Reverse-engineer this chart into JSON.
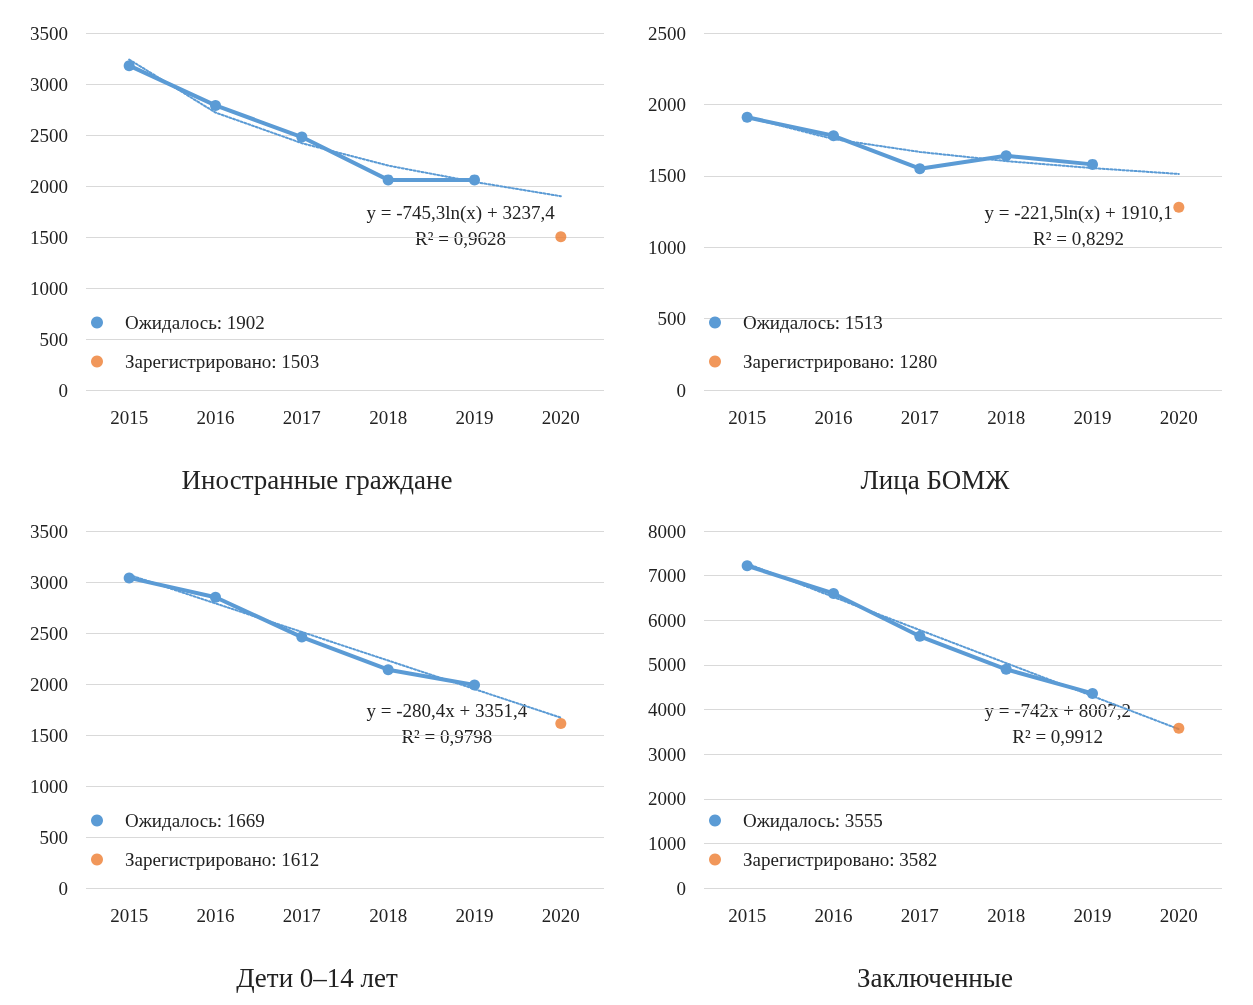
{
  "chart_data": [
    {
      "type": "line",
      "title": "Иностранные граждане",
      "categories": [
        "2015",
        "2016",
        "2017",
        "2018",
        "2019",
        "2020"
      ],
      "ylim": [
        0,
        3500
      ],
      "yticks": [
        0,
        500,
        1000,
        1500,
        2000,
        2500,
        3000,
        3500
      ],
      "grid": "y",
      "legend": "bottom left",
      "marker": "circle",
      "annotations": [
        "y = -745,3ln(x) + 3237,4",
        "R² = 0,9628"
      ],
      "series": [
        {
          "name": "Ожидалось: 1902",
          "color": "#5b9bd5",
          "values": [
            3180,
            2790,
            2480,
            2060,
            2060,
            null
          ]
        },
        {
          "name": "Зарегистрировано: 1503",
          "type": "scatter",
          "color": "#ed7d31",
          "values": [
            null,
            null,
            null,
            null,
            null,
            1503
          ]
        },
        {
          "type": "line",
          "color": "#5b9bd5",
          "line_style": "dotted",
          "marker": "none",
          "values": [
            3240,
            2720,
            2420,
            2200,
            2040,
            1900
          ]
        }
      ]
    },
    {
      "type": "line",
      "title": "Лица БОМЖ",
      "categories": [
        "2015",
        "2016",
        "2017",
        "2018",
        "2019",
        "2020"
      ],
      "ylim": [
        0,
        2500
      ],
      "yticks": [
        0,
        500,
        1000,
        1500,
        2000,
        2500
      ],
      "grid": "y",
      "legend": "bottom left",
      "marker": "circle",
      "annotations": [
        "y = -221,5ln(x) + 1910,1",
        "R² = 0,8292"
      ],
      "series": [
        {
          "name": "Ожидалось: 1513",
          "color": "#5b9bd5",
          "values": [
            1910,
            1780,
            1550,
            1640,
            1580,
            null
          ]
        },
        {
          "name": "Зарегистрировано: 1280",
          "type": "scatter",
          "color": "#ed7d31",
          "values": [
            null,
            null,
            null,
            null,
            null,
            1280
          ]
        },
        {
          "type": "line",
          "color": "#5b9bd5",
          "line_style": "dotted",
          "marker": "none",
          "values": [
            1910,
            1757,
            1667,
            1603,
            1554,
            1513
          ]
        }
      ]
    },
    {
      "type": "line",
      "title": "Дети 0–14 лет",
      "categories": [
        "2015",
        "2016",
        "2017",
        "2018",
        "2019",
        "2020"
      ],
      "ylim": [
        0,
        3500
      ],
      "yticks": [
        0,
        500,
        1000,
        1500,
        2000,
        2500,
        3000,
        3500
      ],
      "grid": "y",
      "legend": "bottom left",
      "marker": "circle",
      "annotations": [
        "y = -280,4x + 3351,4",
        "R² = 0,9798"
      ],
      "series": [
        {
          "name": "Ожидалось: 1669",
          "color": "#5b9bd5",
          "values": [
            3040,
            2850,
            2460,
            2140,
            1990,
            null
          ]
        },
        {
          "name": "Зарегистрировано: 1612",
          "type": "scatter",
          "color": "#ed7d31",
          "values": [
            null,
            null,
            null,
            null,
            null,
            1612
          ]
        },
        {
          "type": "line",
          "color": "#5b9bd5",
          "line_style": "dotted",
          "marker": "none",
          "values": [
            3070,
            2790,
            2510,
            2230,
            1950,
            1670
          ]
        }
      ]
    },
    {
      "type": "line",
      "title": "Заключенные",
      "categories": [
        "2015",
        "2016",
        "2017",
        "2018",
        "2019",
        "2020"
      ],
      "ylim": [
        0,
        8000
      ],
      "yticks": [
        0,
        1000,
        2000,
        3000,
        4000,
        5000,
        6000,
        7000,
        8000
      ],
      "grid": "y",
      "legend": "bottom left",
      "marker": "circle",
      "annotations": [
        "y = -742x + 8007,2",
        "R² = 0,9912"
      ],
      "series": [
        {
          "name": "Ожидалось: 3555",
          "color": "#5b9bd5",
          "values": [
            7220,
            6600,
            5640,
            4900,
            4360,
            null
          ]
        },
        {
          "name": "Зарегистрировано: 3582",
          "type": "scatter",
          "color": "#ed7d31",
          "values": [
            null,
            null,
            null,
            null,
            null,
            3582
          ]
        },
        {
          "type": "line",
          "color": "#5b9bd5",
          "line_style": "dotted",
          "marker": "none",
          "values": [
            7270,
            6520,
            5780,
            5040,
            4300,
            3560
          ]
        }
      ]
    }
  ]
}
